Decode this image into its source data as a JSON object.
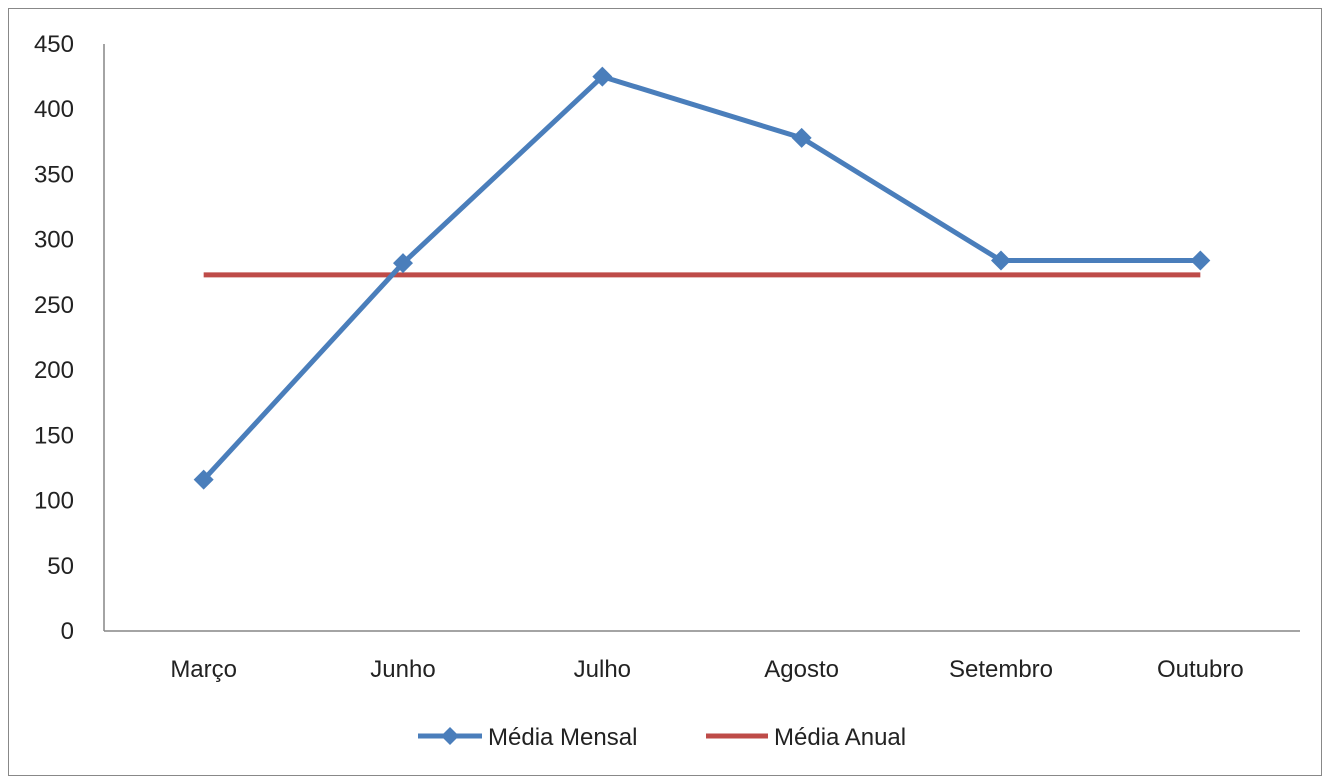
{
  "chart_data": {
    "type": "line",
    "categories": [
      "Março",
      "Junho",
      "Julho",
      "Agosto",
      "Setembro",
      "Outubro"
    ],
    "series": [
      {
        "name": "Média Mensal",
        "values": [
          116,
          282,
          425,
          378,
          284,
          284
        ],
        "color": "#4A7EBB",
        "marker": "diamond"
      },
      {
        "name": "Média Anual",
        "values": [
          273,
          273,
          273,
          273,
          273,
          273
        ],
        "color": "#BE4B48",
        "marker": "none"
      }
    ],
    "yticks": [
      0,
      50,
      100,
      150,
      200,
      250,
      300,
      350,
      400,
      450
    ],
    "ylim": [
      0,
      450
    ],
    "grid": false,
    "legend": "bottom"
  }
}
